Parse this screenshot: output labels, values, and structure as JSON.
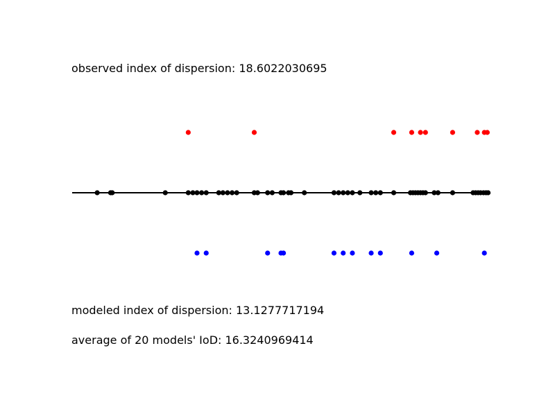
{
  "chart_data": {
    "type": "scatter",
    "grid": false,
    "axes_visible": false,
    "xlim": [
      0,
      100
    ],
    "baseline": {
      "x": [
        0,
        100
      ],
      "color": "#000000"
    },
    "annotations": {
      "observed": "observed index of dispersion: 18.6022030695",
      "modeled": "modeled index of dispersion: 13.1277717194",
      "average": "average of 20 models' IoD: 16.3240969414"
    },
    "series": [
      {
        "row": "top",
        "color": "#ff0000",
        "x": [
          27.8,
          43.6,
          77.0,
          81.3,
          83.4,
          84.6,
          91.1,
          97.0,
          98.7,
          99.4
        ]
      },
      {
        "row": "middle",
        "color": "#000000",
        "x": [
          6.0,
          9.2,
          9.6,
          22.3,
          27.8,
          28.9,
          29.9,
          31.0,
          32.1,
          35.1,
          36.1,
          37.2,
          38.3,
          39.4,
          43.6,
          44.4,
          46.8,
          47.9,
          50.0,
          50.6,
          51.8,
          52.4,
          55.6,
          62.7,
          63.8,
          64.9,
          66.0,
          67.1,
          68.9,
          71.6,
          72.7,
          73.8,
          77.0,
          81.0,
          81.6,
          82.2,
          82.8,
          83.4,
          84.0,
          84.6,
          86.7,
          87.6,
          91.1,
          96.0,
          96.6,
          97.2,
          97.8,
          98.5,
          99.1,
          99.6
        ]
      },
      {
        "row": "bottom",
        "color": "#0000ff",
        "x": [
          29.9,
          32.1,
          46.8,
          50.0,
          50.6,
          62.7,
          64.9,
          67.1,
          71.6,
          73.8,
          81.3,
          87.3,
          98.7
        ]
      }
    ]
  }
}
